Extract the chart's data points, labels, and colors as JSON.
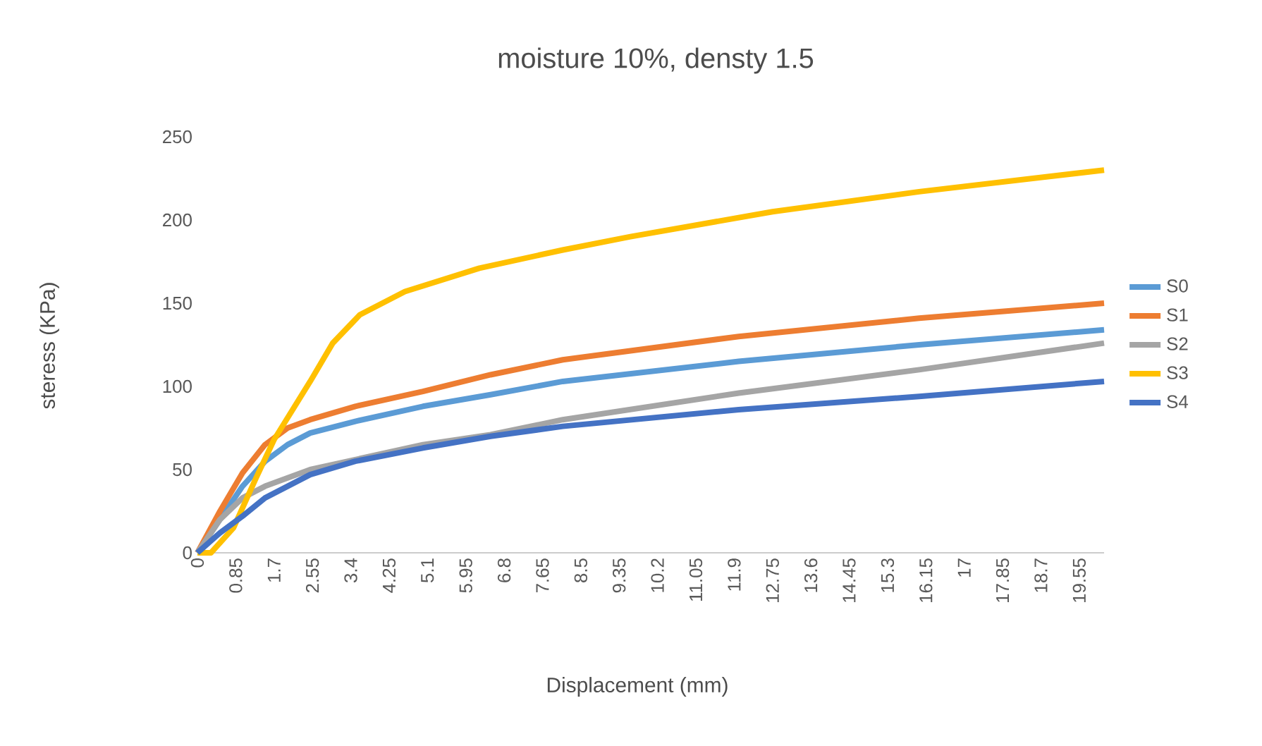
{
  "chart_data": {
    "type": "line",
    "title": "moisture 10%, densty 1.5",
    "xlabel": "Displacement (mm)",
    "ylabel": "steress (KPa)",
    "xlim": [
      0,
      20.1
    ],
    "ylim": [
      0,
      250
    ],
    "xticks": [
      0,
      0.85,
      1.7,
      2.55,
      3.4,
      4.25,
      5.1,
      5.95,
      6.8,
      7.65,
      8.5,
      9.35,
      10.2,
      11.05,
      11.9,
      12.75,
      13.6,
      14.45,
      15.3,
      16.15,
      17,
      17.85,
      18.7,
      19.55
    ],
    "yticks": [
      0,
      50,
      100,
      150,
      200,
      250
    ],
    "legend": "right",
    "grid": false,
    "marker": "none",
    "line_style": "solid",
    "series": [
      {
        "name": "S0",
        "color": "#5b9bd5",
        "x": [
          0,
          0.5,
          1.0,
          1.5,
          2.0,
          2.5,
          3.5,
          5,
          6.5,
          8.1,
          12,
          16,
          20.1
        ],
        "values": [
          0,
          20,
          40,
          55,
          65,
          72,
          79,
          88,
          95,
          103,
          115,
          125,
          134
        ]
      },
      {
        "name": "S1",
        "color": "#ed7d31",
        "x": [
          0,
          0.5,
          1.0,
          1.5,
          2.0,
          2.5,
          3.5,
          5,
          6.5,
          8.1,
          12,
          16,
          20.1
        ],
        "values": [
          0,
          25,
          48,
          65,
          75,
          80,
          88,
          97,
          107,
          116,
          130,
          141,
          150
        ]
      },
      {
        "name": "S2",
        "color": "#a5a5a5",
        "x": [
          0,
          0.5,
          1.0,
          1.5,
          2.5,
          3.5,
          5,
          6.5,
          8.1,
          12,
          16,
          20.1
        ],
        "values": [
          0,
          20,
          33,
          40,
          50,
          56,
          65,
          71,
          80,
          96,
          110,
          126
        ]
      },
      {
        "name": "S3",
        "color": "#ffc000",
        "x": [
          0,
          0.3,
          0.8,
          1.3,
          1.7,
          2.5,
          3.0,
          3.6,
          4.6,
          6.25,
          8.1,
          9.6,
          12.75,
          16,
          20.1
        ],
        "values": [
          0,
          0,
          15,
          45,
          68,
          103,
          126,
          143,
          157,
          171,
          182,
          190,
          205,
          217,
          230
        ]
      },
      {
        "name": "S4",
        "color": "#4472c4",
        "x": [
          0,
          0.5,
          1.0,
          1.5,
          2.5,
          3.5,
          5,
          6.5,
          8.1,
          12,
          16,
          20.1
        ],
        "values": [
          0,
          12,
          22,
          33,
          47,
          55,
          63,
          70,
          76,
          86,
          94,
          103
        ]
      }
    ]
  }
}
